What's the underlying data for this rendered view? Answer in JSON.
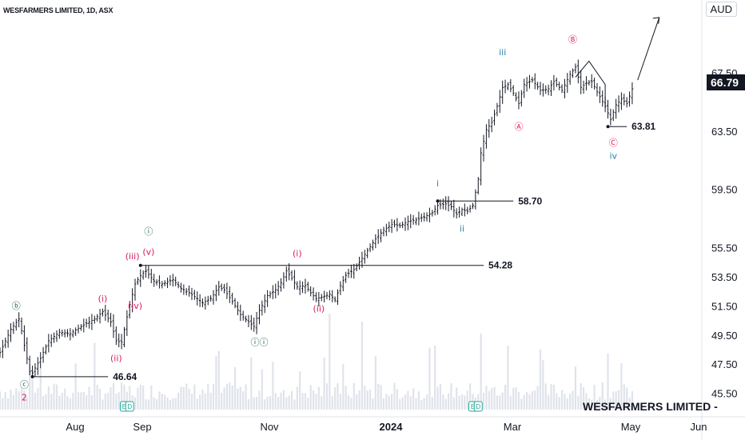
{
  "header": {
    "title": "WESFARMERS LIMITED, 1D, ASX",
    "currency": "AUD",
    "watermark": "WESFARMERS LIMITED - "
  },
  "last_price": "66.79",
  "colors": {
    "bars": "#131722",
    "volume": "#e0e3eb",
    "wave_pink": "#d81b60",
    "wave_teal": "#1b5e48",
    "wave_blue": "#2a7fa8",
    "grid_text": "#131722"
  },
  "chart_data": {
    "type": "ohlc",
    "title": "WESFARMERS LIMITED, 1D, ASX",
    "y_axis": {
      "ticks": [
        "45.50",
        "47.50",
        "49.50",
        "51.50",
        "53.50",
        "55.50",
        "59.50",
        "63.50",
        "67.50"
      ],
      "ylim": [
        44.6,
        72.5
      ],
      "currency": "AUD",
      "position": "right"
    },
    "x_axis": {
      "ticks": [
        "Aug",
        "Sep",
        "Nov",
        "2024",
        "Mar",
        "May",
        "Jun"
      ]
    },
    "close_anchors": [
      {
        "i": 0,
        "p": 48.3
      },
      {
        "i": 4,
        "p": 49.9
      },
      {
        "i": 7,
        "p": 50.6
      },
      {
        "i": 8,
        "p": 49.8
      },
      {
        "i": 9,
        "p": 48.8
      },
      {
        "i": 11,
        "p": 47.0
      },
      {
        "i": 12,
        "p": 46.9
      },
      {
        "i": 15,
        "p": 47.9
      },
      {
        "i": 18,
        "p": 49.1
      },
      {
        "i": 22,
        "p": 49.7
      },
      {
        "i": 26,
        "p": 49.6
      },
      {
        "i": 31,
        "p": 50.2
      },
      {
        "i": 35,
        "p": 50.6
      },
      {
        "i": 38,
        "p": 51.1
      },
      {
        "i": 41,
        "p": 50.4
      },
      {
        "i": 43,
        "p": 49.1
      },
      {
        "i": 45,
        "p": 49.0
      },
      {
        "i": 48,
        "p": 51.6
      },
      {
        "i": 50,
        "p": 53.0
      },
      {
        "i": 52,
        "p": 53.6
      },
      {
        "i": 54,
        "p": 53.9
      },
      {
        "i": 57,
        "p": 53.2
      },
      {
        "i": 60,
        "p": 53.0
      },
      {
        "i": 64,
        "p": 53.3
      },
      {
        "i": 67,
        "p": 52.7
      },
      {
        "i": 70,
        "p": 52.4
      },
      {
        "i": 73,
        "p": 52.0
      },
      {
        "i": 75,
        "p": 51.7
      },
      {
        "i": 78,
        "p": 52.0
      },
      {
        "i": 81,
        "p": 52.8
      },
      {
        "i": 83,
        "p": 52.6
      },
      {
        "i": 86,
        "p": 51.8
      },
      {
        "i": 89,
        "p": 50.9
      },
      {
        "i": 92,
        "p": 50.4
      },
      {
        "i": 94,
        "p": 50.1
      },
      {
        "i": 96,
        "p": 51.2
      },
      {
        "i": 99,
        "p": 52.2
      },
      {
        "i": 102,
        "p": 52.6
      },
      {
        "i": 104,
        "p": 53.1
      },
      {
        "i": 106,
        "p": 53.9
      },
      {
        "i": 108,
        "p": 53.4
      },
      {
        "i": 110,
        "p": 52.8
      },
      {
        "i": 113,
        "p": 52.9
      },
      {
        "i": 115,
        "p": 52.4
      },
      {
        "i": 117,
        "p": 52.0
      },
      {
        "i": 119,
        "p": 52.1
      },
      {
        "i": 122,
        "p": 52.3
      },
      {
        "i": 124,
        "p": 51.9
      },
      {
        "i": 126,
        "p": 52.9
      },
      {
        "i": 128,
        "p": 53.6
      },
      {
        "i": 131,
        "p": 54.0
      },
      {
        "i": 133,
        "p": 54.5
      },
      {
        "i": 136,
        "p": 55.3
      },
      {
        "i": 139,
        "p": 56.1
      },
      {
        "i": 142,
        "p": 56.7
      },
      {
        "i": 145,
        "p": 57.1
      },
      {
        "i": 148,
        "p": 57.0
      },
      {
        "i": 151,
        "p": 57.3
      },
      {
        "i": 154,
        "p": 57.4
      },
      {
        "i": 157,
        "p": 57.6
      },
      {
        "i": 160,
        "p": 57.9
      },
      {
        "i": 162,
        "p": 58.4
      },
      {
        "i": 165,
        "p": 58.5
      },
      {
        "i": 167,
        "p": 58.3
      },
      {
        "i": 169,
        "p": 57.8
      },
      {
        "i": 171,
        "p": 58.1
      },
      {
        "i": 173,
        "p": 58.0
      },
      {
        "i": 175,
        "p": 58.4
      },
      {
        "i": 177,
        "p": 60.2
      },
      {
        "i": 178,
        "p": 62.0
      },
      {
        "i": 180,
        "p": 63.6
      },
      {
        "i": 182,
        "p": 64.1
      },
      {
        "i": 184,
        "p": 65.2
      },
      {
        "i": 186,
        "p": 66.5
      },
      {
        "i": 188,
        "p": 66.7
      },
      {
        "i": 190,
        "p": 66.1
      },
      {
        "i": 192,
        "p": 65.4
      },
      {
        "i": 194,
        "p": 66.7
      },
      {
        "i": 197,
        "p": 67.0
      },
      {
        "i": 200,
        "p": 66.3
      },
      {
        "i": 203,
        "p": 66.4
      },
      {
        "i": 205,
        "p": 66.9
      },
      {
        "i": 208,
        "p": 66.3
      },
      {
        "i": 211,
        "p": 67.4
      },
      {
        "i": 213,
        "p": 67.9
      },
      {
        "i": 215,
        "p": 66.5
      },
      {
        "i": 217,
        "p": 66.8
      },
      {
        "i": 219,
        "p": 66.9
      },
      {
        "i": 221,
        "p": 66.2
      },
      {
        "i": 224,
        "p": 65.2
      },
      {
        "i": 226,
        "p": 64.3
      },
      {
        "i": 228,
        "p": 65.3
      },
      {
        "i": 230,
        "p": 65.7
      },
      {
        "i": 232,
        "p": 65.4
      },
      {
        "i": 234,
        "p": 66.4
      }
    ],
    "levels": [
      {
        "value": "46.64",
        "from": 12,
        "to": 40
      },
      {
        "value": "54.28",
        "from": 52,
        "to": 179
      },
      {
        "value": "58.70",
        "from": 162,
        "to": 190
      },
      {
        "value": "63.81",
        "from": 225,
        "to": 232
      }
    ],
    "wave_labels": [
      {
        "text": "ⓑ",
        "i": 6,
        "p": 51.3,
        "color": "teal"
      },
      {
        "text": "ⓒ",
        "i": 9,
        "p": 45.9,
        "color": "teal"
      },
      {
        "text": "2",
        "i": 9,
        "p": 45.0,
        "color": "pink"
      },
      {
        "text": "(i)",
        "i": 38,
        "p": 51.8,
        "color": "pink"
      },
      {
        "text": "(ii)",
        "i": 43,
        "p": 47.7,
        "color": "pink"
      },
      {
        "text": "(iii)",
        "i": 49,
        "p": 54.7,
        "color": "pink"
      },
      {
        "text": "(iv)",
        "i": 50,
        "p": 51.3,
        "color": "pink"
      },
      {
        "text": "(v)",
        "i": 55,
        "p": 55.0,
        "color": "pink"
      },
      {
        "text": "ⓘ",
        "i": 55,
        "p": 56.4,
        "color": "teal"
      },
      {
        "text": "ⓘⓘ",
        "i": 96,
        "p": 48.8,
        "color": "teal"
      },
      {
        "text": "(i)",
        "i": 110,
        "p": 54.9,
        "color": "pink"
      },
      {
        "text": "(ii)",
        "i": 118,
        "p": 51.1,
        "color": "pink"
      },
      {
        "text": "i",
        "i": 162,
        "p": 59.7,
        "color": "blue"
      },
      {
        "text": "ii",
        "i": 171,
        "p": 56.6,
        "color": "blue"
      },
      {
        "text": "iii",
        "i": 186,
        "p": 68.7,
        "color": "blue"
      },
      {
        "text": "Ⓐ",
        "i": 192,
        "p": 63.6,
        "color": "pink"
      },
      {
        "text": "Ⓑ",
        "i": 212,
        "p": 69.6,
        "color": "pink"
      },
      {
        "text": "Ⓒ",
        "i": 227,
        "p": 62.5,
        "color": "pink"
      },
      {
        "text": "iv",
        "i": 227,
        "p": 61.6,
        "color": "blue"
      }
    ],
    "event_markers": [
      {
        "label": "E",
        "i": 46
      },
      {
        "label": "D",
        "i": 48
      },
      {
        "label": "E",
        "i": 175
      },
      {
        "label": "D",
        "i": 177
      }
    ],
    "triangle": [
      {
        "i": 213,
        "p": 67.2
      },
      {
        "i": 218,
        "p": 68.3
      },
      {
        "i": 224,
        "p": 66.7
      },
      {
        "i": 224,
        "p": 65.1
      }
    ],
    "projection": {
      "from_i": 236,
      "from_p": 67.0,
      "to_i": 244,
      "to_p": 71.3
    }
  }
}
